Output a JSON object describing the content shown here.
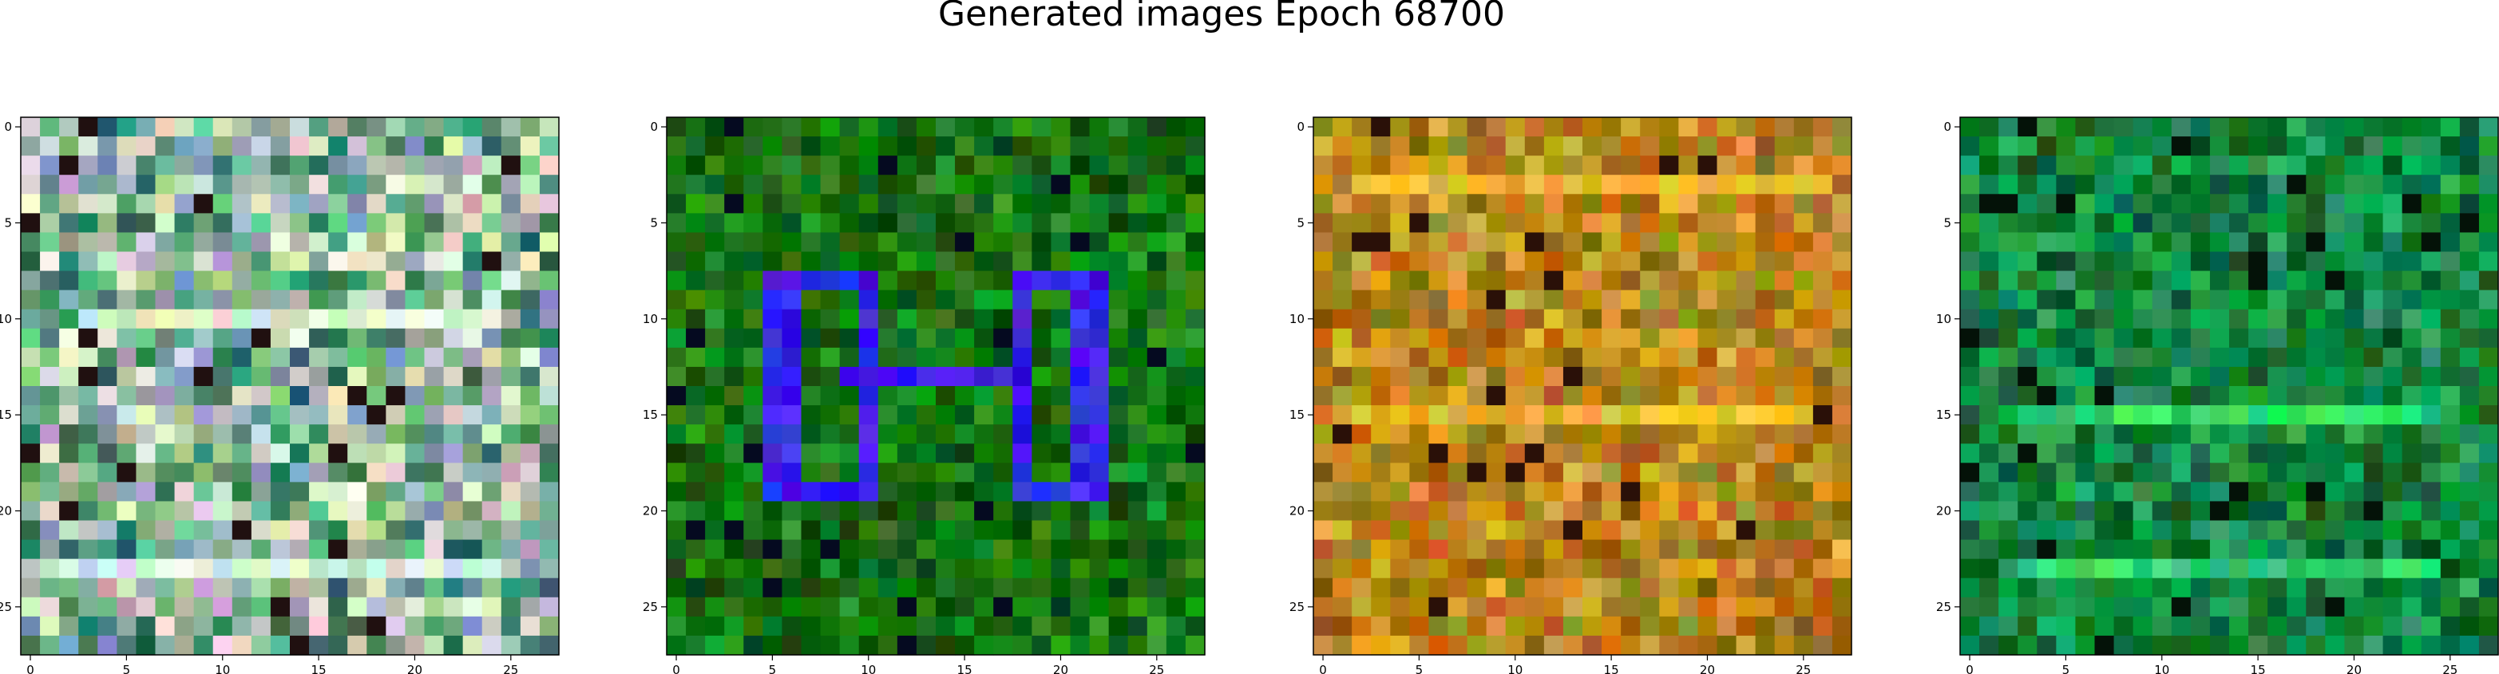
{
  "figure": {
    "title": "Generated images Epoch 68700"
  },
  "chart_data": [
    {
      "type": "heatmap",
      "grid_size": 28,
      "xlim": [
        -0.5,
        27.5
      ],
      "ylim": [
        27.5,
        -0.5
      ],
      "xticks": [
        0,
        5,
        10,
        15,
        20,
        25
      ],
      "yticks": [
        0,
        5,
        10,
        15,
        20,
        25
      ],
      "palette": [
        "#7fae8c",
        "#a9c59a",
        "#5f9e7a",
        "#d4e3c4",
        "#3f8a6a",
        "#b9b2c2",
        "#6fbf8a",
        "#2c6f58",
        "#e2e8d5",
        "#88a0b8"
      ],
      "motif_color": "#d9efd9",
      "dark_color": "#201010"
    },
    {
      "type": "heatmap",
      "grid_size": 28,
      "xlim": [
        -0.5,
        27.5
      ],
      "ylim": [
        27.5,
        -0.5
      ],
      "xticks": [
        0,
        5,
        10,
        15,
        20,
        25
      ],
      "yticks": [
        0,
        5,
        10,
        15,
        20,
        25
      ],
      "palette": [
        "#0b6a0b",
        "#1a7d12",
        "#0e5a0e",
        "#2e8a1e",
        "#08520a",
        "#157315",
        "#22901f",
        "#0a6410"
      ],
      "motif_color": "#3a22ee",
      "dark_color": "#050a20"
    },
    {
      "type": "heatmap",
      "grid_size": 28,
      "xlim": [
        -0.5,
        27.5
      ],
      "ylim": [
        27.5,
        -0.5
      ],
      "xticks": [
        0,
        5,
        10,
        15,
        20,
        25
      ],
      "yticks": [
        0,
        5,
        10,
        15,
        20,
        25
      ],
      "palette": [
        "#c08a1a",
        "#a8700f",
        "#d49a2a",
        "#b07a20",
        "#8a6a10",
        "#c46a12",
        "#9a8a20",
        "#dca838"
      ],
      "motif_color": "#f0b830",
      "dark_color": "#2a1008"
    },
    {
      "type": "heatmap",
      "grid_size": 28,
      "xlim": [
        -0.5,
        27.5
      ],
      "ylim": [
        27.5,
        -0.5
      ],
      "xticks": [
        0,
        5,
        10,
        15,
        20,
        25
      ],
      "yticks": [
        0,
        5,
        10,
        15,
        20,
        25
      ],
      "palette": [
        "#0c8a3a",
        "#08702e",
        "#15a04a",
        "#0a6a2a",
        "#1a9a55",
        "#0e7d40",
        "#2aa060",
        "#0b5e28"
      ],
      "motif_color": "#30d870",
      "dark_color": "#041208"
    }
  ]
}
